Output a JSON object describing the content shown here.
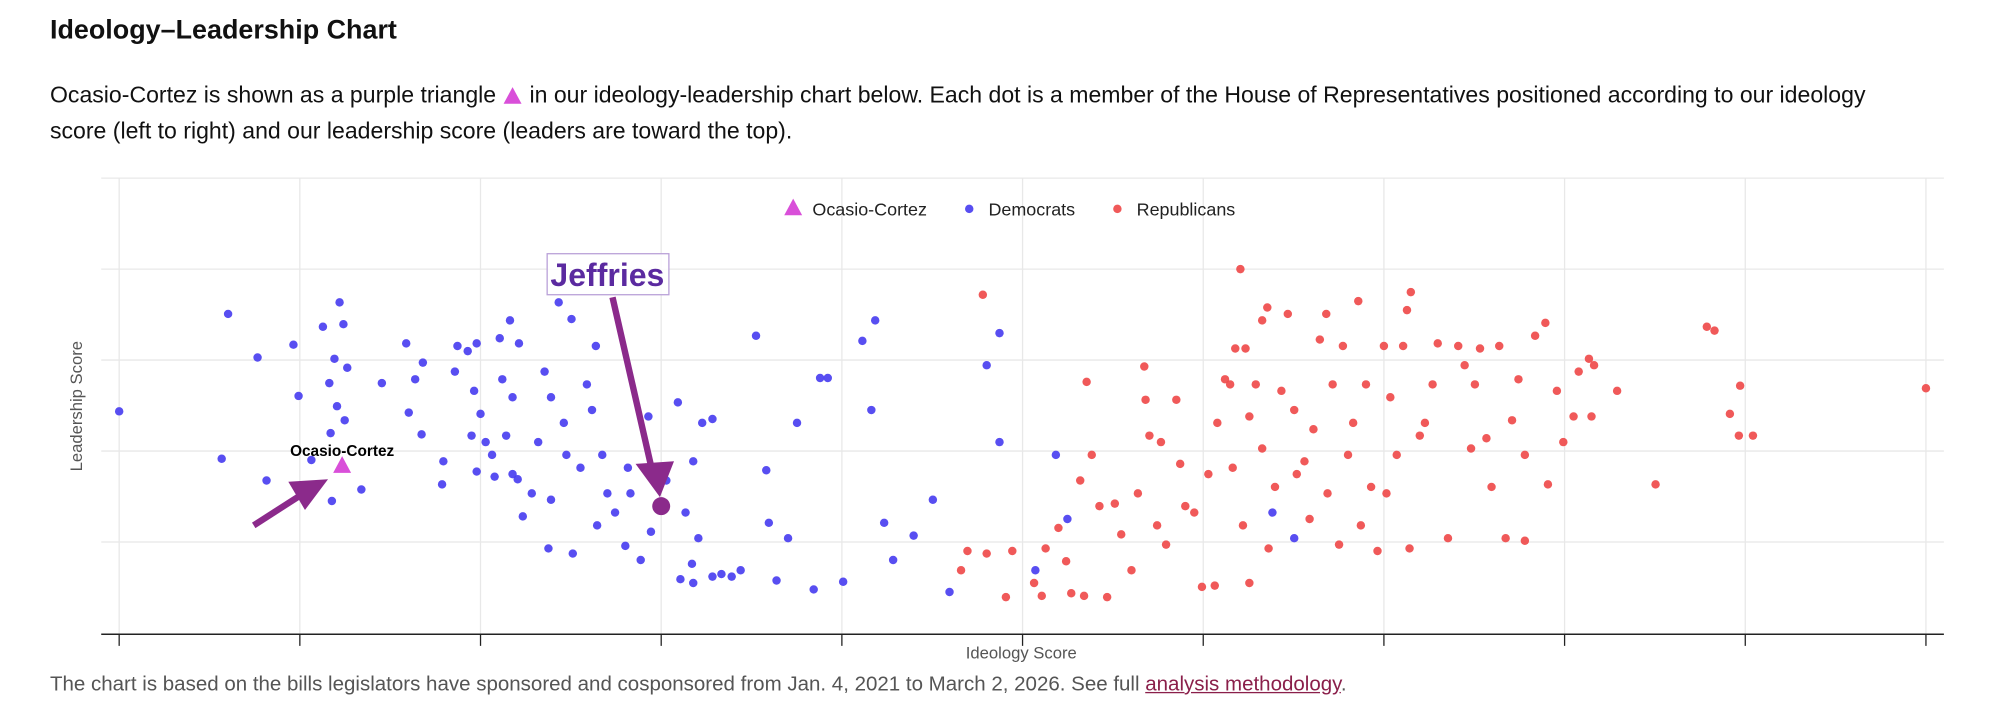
{
  "header": {
    "title": "Ideology–Leadership Chart"
  },
  "intro": {
    "before": "Ocasio-Cortez is shown as a purple triangle",
    "after": "in our ideology-leadership chart below. Each dot is a member of the House of Representatives positioned according to our ideology score (left to right) and our leadership score (leaders are toward the top)."
  },
  "chart_data": {
    "type": "scatter",
    "x_label": "Ideology Score",
    "y_label": "Leadership Score",
    "grid": true,
    "legend": "top",
    "xlim": [
      -14,
      1424
    ],
    "ylim": [
      0,
      356
    ],
    "xticks": [
      0,
      141,
      282,
      423,
      564,
      705,
      846,
      987,
      1128,
      1269,
      1410
    ],
    "yticks": [
      0,
      72,
      143,
      214,
      285,
      356
    ],
    "annotations": [
      "Ocasio-Cortez",
      "Jeffries"
    ],
    "series": [
      {
        "name": "Ocasio-Cortez",
        "color": "#d94fd9",
        "marker": "triangle",
        "x": [
          174
        ],
        "y": [
          131
        ]
      },
      {
        "name": "Democrats",
        "color": "#4a3ff0",
        "marker": "circle",
        "x": [
          0,
          85,
          108,
          80,
          115,
          136,
          140,
          159,
          172,
          175,
          168,
          178,
          164,
          170,
          176,
          165,
          150,
          189,
          166,
          205,
          224,
          237,
          226,
          236,
          231,
          253,
          252,
          262,
          264,
          272,
          279,
          277,
          282,
          275,
          286,
          291,
          279,
          293,
          297,
          305,
          312,
          299,
          307,
          302,
          307,
          311,
          315,
          322,
          327,
          332,
          337,
          343,
          353,
          347,
          349,
          337,
          335,
          354,
          360,
          365,
          369,
          372,
          377,
          381,
          373,
          387,
          397,
          399,
          395,
          407,
          415,
          413,
          427,
          436,
          442,
          448,
          455,
          463,
          452,
          447,
          438,
          448,
          463,
          470,
          478,
          485,
          497,
          505,
          507,
          513,
          522,
          529,
          542,
          547,
          553,
          565,
          580,
          590,
          587,
          597,
          604,
          620,
          635,
          648,
          677,
          687,
          687,
          731,
          715,
          740,
          900,
          917
        ],
        "y": [
          174,
          250,
          216,
          137,
          120,
          226,
          186,
          240,
          259,
          242,
          215,
          208,
          196,
          178,
          167,
          157,
          136,
          113,
          104,
          196,
          227,
          212,
          173,
          156,
          199,
          135,
          117,
          205,
          225,
          221,
          227,
          190,
          172,
          155,
          150,
          140,
          127,
          123,
          231,
          245,
          227,
          199,
          185,
          155,
          125,
          121,
          92,
          110,
          150,
          205,
          185,
          259,
          246,
          165,
          140,
          105,
          67,
          63,
          130,
          195,
          175,
          225,
          140,
          110,
          85,
          95,
          130,
          110,
          69,
          58,
          80,
          170,
          120,
          181,
          95,
          135,
          165,
          168,
          75,
          55,
          43,
          40,
          45,
          47,
          45,
          50,
          233,
          128,
          87,
          42,
          75,
          165,
          35,
          200,
          200,
          41,
          229,
          245,
          175,
          87,
          58,
          77,
          105,
          33,
          210,
          235,
          150,
          140,
          50,
          90,
          95,
          75
        ]
      },
      {
        "name": "Republicans",
        "color": "#ef4b4b",
        "marker": "circle",
        "x": [
          674,
          677,
          662,
          657,
          692,
          697,
          714,
          720,
          723,
          733,
          739,
          743,
          753,
          755,
          759,
          750,
          765,
          771,
          777,
          782,
          790,
          795,
          800,
          801,
          804,
          813,
          810,
          817,
          825,
          828,
          832,
          839,
          845,
          855,
          850,
          857,
          863,
          867,
          869,
          871,
          875,
          879,
          882,
          877,
          882,
          887,
          892,
          896,
          892,
          897,
          902,
          907,
          912,
          917,
          919,
          925,
          929,
          932,
          937,
          942,
          943,
          947,
          952,
          955,
          959,
          963,
          967,
          969,
          973,
          977,
          982,
          987,
          989,
          992,
          997,
          1002,
          1005,
          1008,
          1007,
          1015,
          1019,
          1025,
          1029,
          1037,
          1045,
          1050,
          1055,
          1058,
          1062,
          1067,
          1071,
          1077,
          1082,
          1087,
          1092,
          1097,
          1097,
          1105,
          1113,
          1115,
          1122,
          1127,
          1135,
          1139,
          1147,
          1149,
          1151,
          1169,
          1199,
          1239,
          1245,
          1257,
          1265,
          1264,
          1275,
          1410
        ],
        "y": [
          265,
          63,
          65,
          50,
          29,
          65,
          40,
          30,
          67,
          83,
          57,
          32,
          30,
          197,
          140,
          120,
          100,
          29,
          102,
          78,
          50,
          110,
          209,
          183,
          155,
          150,
          85,
          70,
          183,
          133,
          100,
          95,
          37,
          38,
          125,
          165,
          199,
          195,
          130,
          223,
          285,
          223,
          170,
          85,
          40,
          195,
          245,
          255,
          145,
          67,
          115,
          190,
          250,
          175,
          125,
          135,
          90,
          160,
          230,
          250,
          110,
          195,
          70,
          225,
          140,
          165,
          260,
          85,
          195,
          115,
          65,
          225,
          110,
          185,
          140,
          225,
          253,
          267,
          67,
          155,
          165,
          195,
          227,
          75,
          225,
          210,
          145,
          195,
          223,
          153,
          115,
          225,
          75,
          167,
          199,
          73,
          140,
          233,
          243,
          117,
          190,
          150,
          170,
          205,
          215,
          170,
          210,
          190,
          117,
          240,
          237,
          172,
          194,
          155,
          155,
          192
        ]
      }
    ]
  },
  "footer": {
    "text": "The chart is based on the bills legislators have sponsored and cosponsored from Jan. 4, 2021 to March 2, 2026. See full",
    "link": "analysis methodology",
    "end": "."
  }
}
